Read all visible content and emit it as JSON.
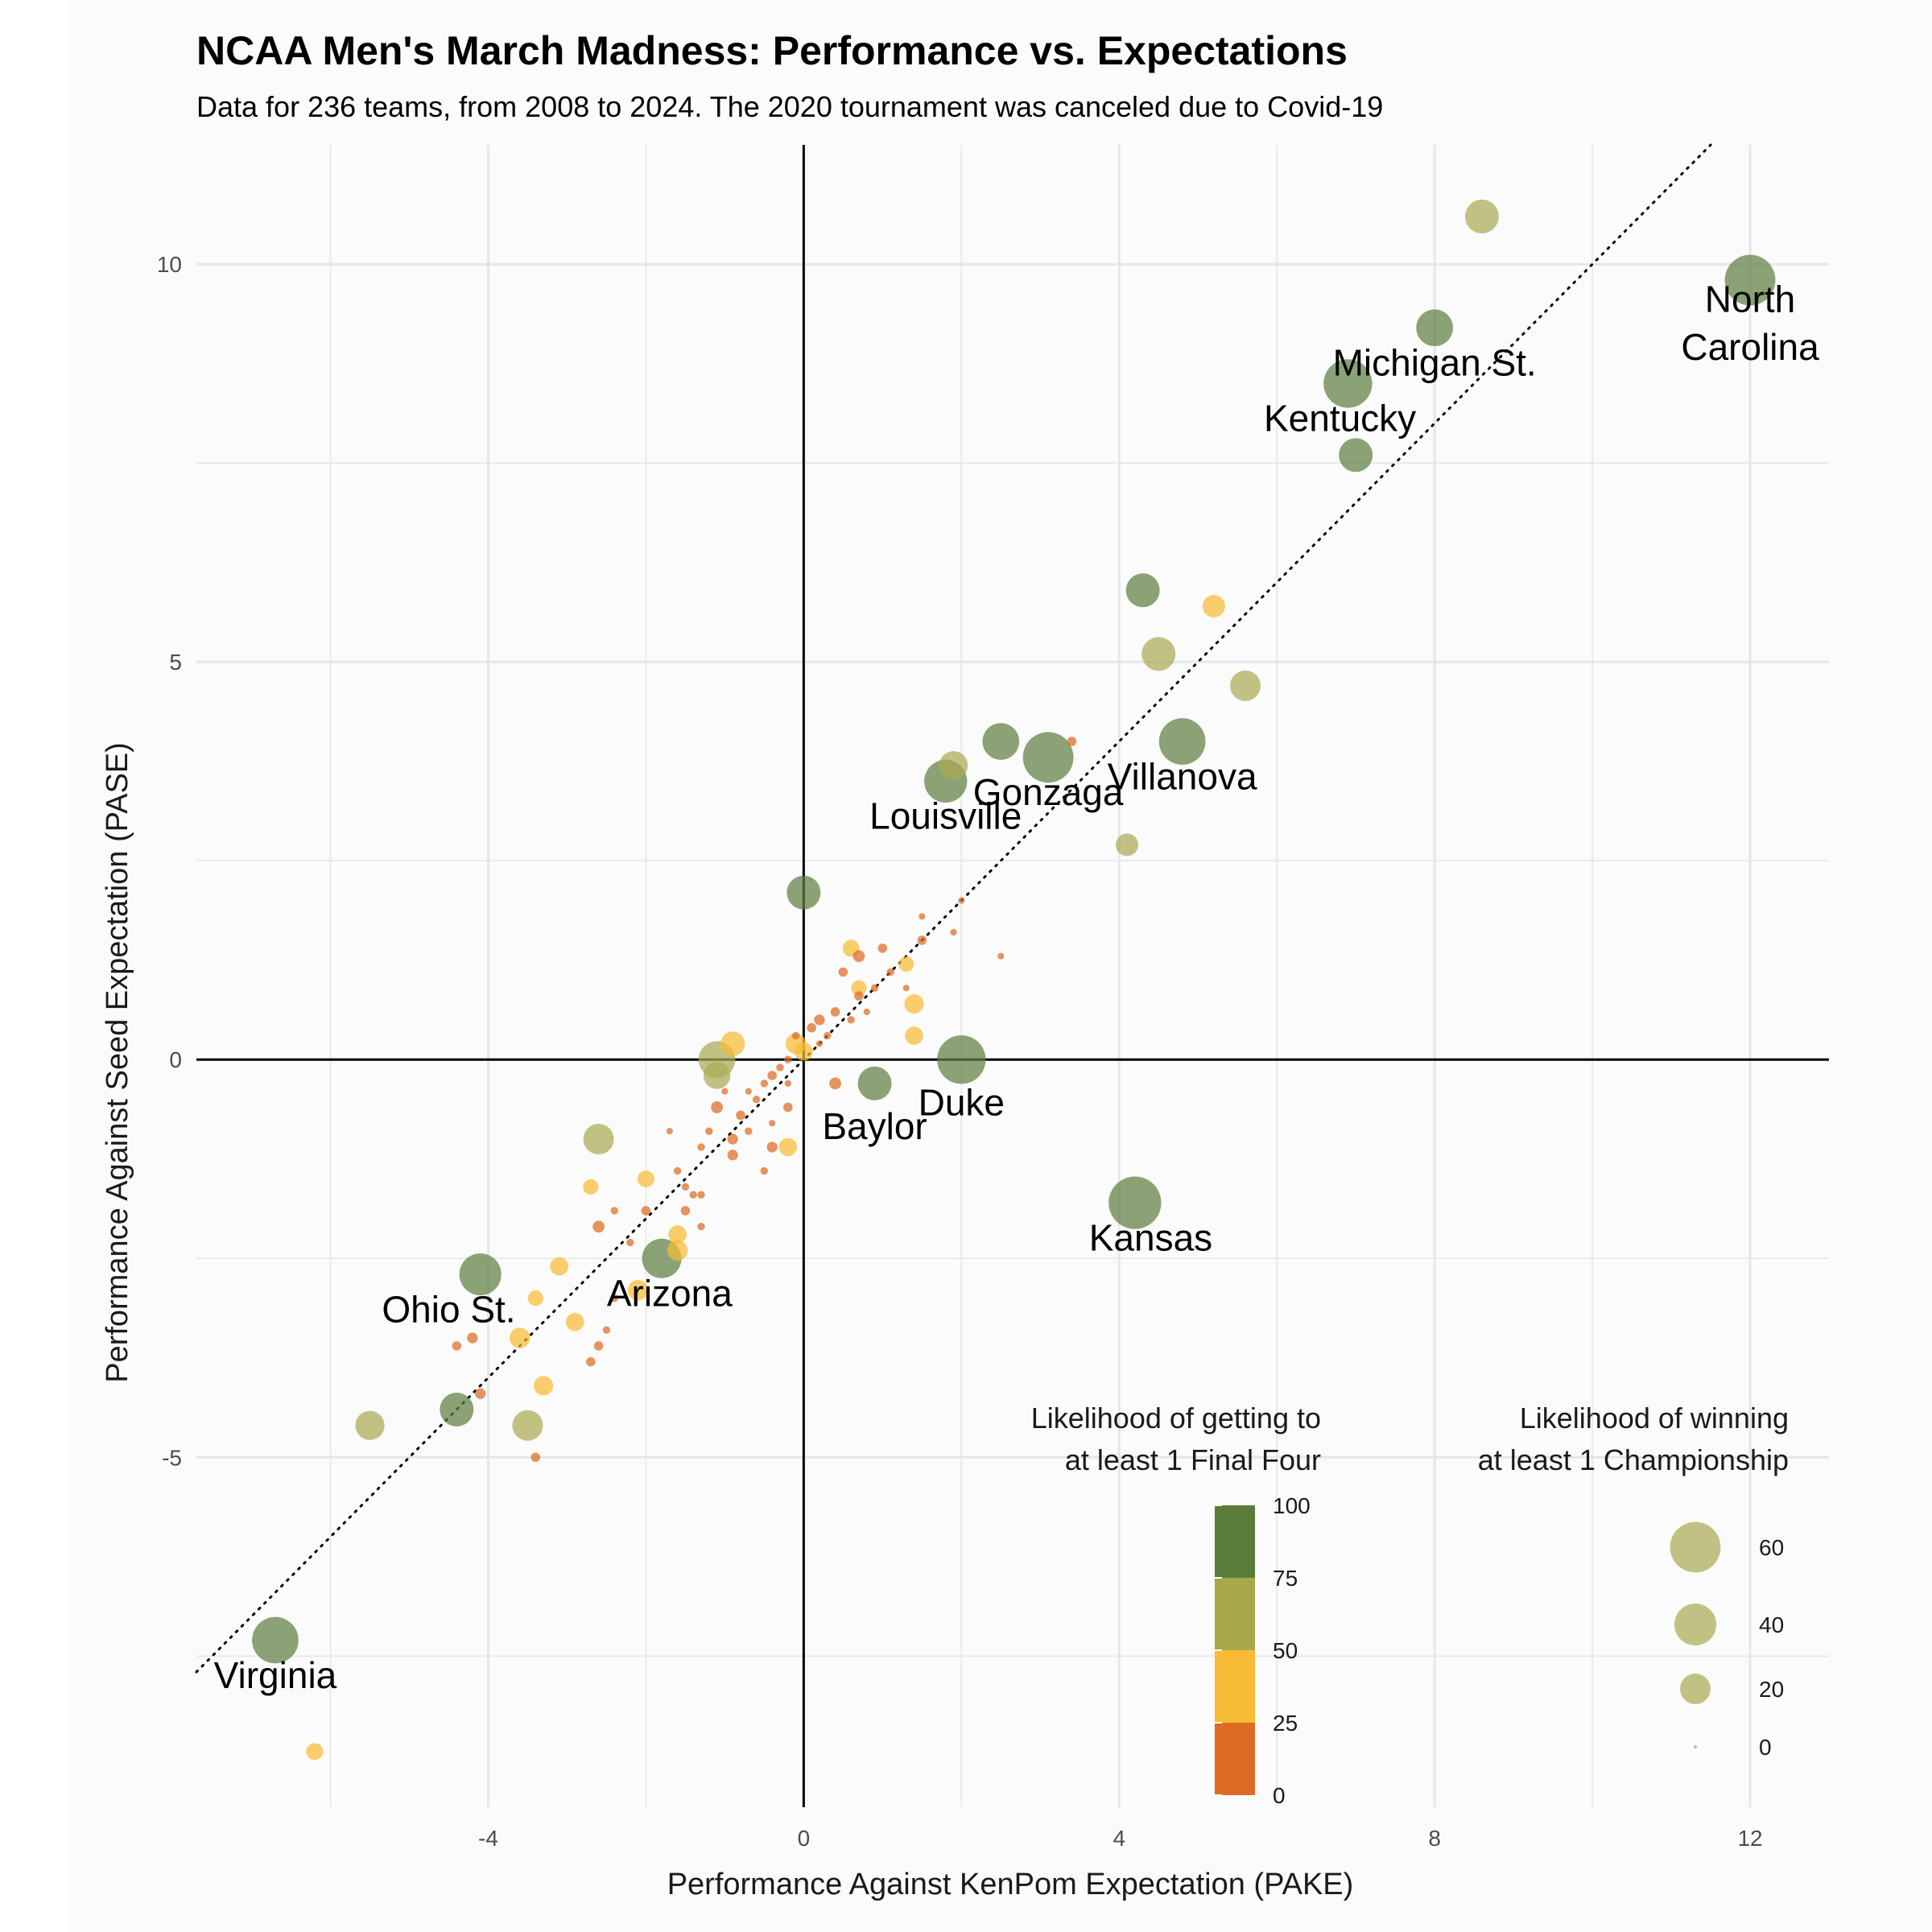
{
  "title": "NCAA Men's March Madness: Performance vs. Expectations",
  "subtitle": "Data for 236 teams, from 2008 to 2024. The 2020 tournament was canceled due to Covid-19",
  "colors": {
    "band_0_25": "#dd6b23",
    "band_25_50": "#f8bb35",
    "band_50_75": "#a8a84a",
    "band_75_100": "#5a7c3a",
    "point_0_25": "#dd6b23",
    "point_25_50": "#f8bb35",
    "point_50_75": "#abab55",
    "point_75_100": "#5e7f41",
    "gridline": "#e6e6e6",
    "panel_bg": "#fbfbfb"
  },
  "chart_data": {
    "type": "scatter",
    "title": "NCAA Men's March Madness: Performance vs. Expectations",
    "subtitle": "Data for 236 teams, from 2008 to 2024. The 2020 tournament was canceled due to Covid-19",
    "xlabel": "Performance Against KenPom Expectation (PAKE)",
    "ylabel": "Performance Against Seed Expectation (PASE)",
    "xlim": [
      -7.7,
      13.0
    ],
    "ylim": [
      -9.4,
      11.5
    ],
    "x_ticks": [
      -4,
      0,
      4,
      8,
      12
    ],
    "x_tick_labels": [
      "-4",
      "0",
      "4",
      "8",
      "12"
    ],
    "y_ticks": [
      -5,
      0,
      5,
      10
    ],
    "y_tick_labels": [
      "-5",
      "0",
      "5",
      "10"
    ],
    "grid": true,
    "reference_lines": {
      "vertical_x": 0,
      "horizontal_y": 0,
      "diagonal": "y = x (dotted)"
    },
    "color_legend": {
      "title_lines": [
        "Likelihood of getting to",
        "at least 1 Final Four"
      ],
      "breaks": [
        "100",
        "75",
        "50",
        "25",
        "0"
      ]
    },
    "size_legend": {
      "title_lines": [
        "Likelihood of winning",
        "at least 1 Championship"
      ],
      "values": [
        60,
        40,
        20,
        0
      ],
      "labels": [
        "60",
        "40",
        "20",
        "0"
      ]
    },
    "points": [
      {
        "x": 12.0,
        "y": 9.8,
        "ff": 90,
        "champ": 60
      },
      {
        "x": 8.6,
        "y": 10.6,
        "ff": 65,
        "champ": 25
      },
      {
        "x": 8.0,
        "y": 9.2,
        "ff": 88,
        "champ": 30
      },
      {
        "x": 6.9,
        "y": 8.5,
        "ff": 90,
        "champ": 55
      },
      {
        "x": 7.0,
        "y": 7.6,
        "ff": 85,
        "champ": 25
      },
      {
        "x": 4.3,
        "y": 5.9,
        "ff": 85,
        "champ": 25
      },
      {
        "x": 5.2,
        "y": 5.7,
        "ff": 40,
        "champ": 10
      },
      {
        "x": 4.5,
        "y": 5.1,
        "ff": 60,
        "champ": 25
      },
      {
        "x": 5.6,
        "y": 4.7,
        "ff": 60,
        "champ": 20
      },
      {
        "x": 2.5,
        "y": 4.0,
        "ff": 85,
        "champ": 30
      },
      {
        "x": 4.8,
        "y": 4.0,
        "ff": 90,
        "champ": 50
      },
      {
        "x": 3.1,
        "y": 3.8,
        "ff": 90,
        "champ": 60
      },
      {
        "x": 1.9,
        "y": 3.7,
        "ff": 65,
        "champ": 17
      },
      {
        "x": 1.8,
        "y": 3.5,
        "ff": 90,
        "champ": 42
      },
      {
        "x": 3.4,
        "y": 4.0,
        "ff": 15,
        "champ": 1
      },
      {
        "x": 4.1,
        "y": 2.7,
        "ff": 60,
        "champ": 10
      },
      {
        "x": 0.0,
        "y": 2.1,
        "ff": 85,
        "champ": 25
      },
      {
        "x": 2.0,
        "y": 0.0,
        "ff": 90,
        "champ": 55
      },
      {
        "x": 0.9,
        "y": -0.3,
        "ff": 85,
        "champ": 25
      },
      {
        "x": 4.2,
        "y": -1.8,
        "ff": 90,
        "champ": 65
      },
      {
        "x": -1.1,
        "y": 0.0,
        "ff": 65,
        "champ": 30
      },
      {
        "x": -1.1,
        "y": -0.2,
        "ff": 60,
        "champ": 15
      },
      {
        "x": -2.6,
        "y": -1.0,
        "ff": 65,
        "champ": 20
      },
      {
        "x": -1.8,
        "y": -2.5,
        "ff": 85,
        "champ": 35
      },
      {
        "x": -4.1,
        "y": -2.7,
        "ff": 85,
        "champ": 40
      },
      {
        "x": -4.4,
        "y": -4.4,
        "ff": 85,
        "champ": 25
      },
      {
        "x": -3.5,
        "y": -4.6,
        "ff": 60,
        "champ": 20
      },
      {
        "x": -5.5,
        "y": -4.6,
        "ff": 60,
        "champ": 18
      },
      {
        "x": -6.7,
        "y": -7.3,
        "ff": 90,
        "champ": 50
      },
      {
        "x": -6.2,
        "y": -8.7,
        "ff": 40,
        "champ": 5
      },
      {
        "x": 0.6,
        "y": 1.4,
        "ff": 40,
        "champ": 5
      },
      {
        "x": 0.7,
        "y": 0.9,
        "ff": 40,
        "champ": 4
      },
      {
        "x": 1.3,
        "y": 1.2,
        "ff": 40,
        "champ": 4
      },
      {
        "x": 1.4,
        "y": 0.7,
        "ff": 40,
        "champ": 7
      },
      {
        "x": 1.4,
        "y": 0.3,
        "ff": 40,
        "champ": 6
      },
      {
        "x": -0.9,
        "y": 0.2,
        "ff": 40,
        "champ": 12
      },
      {
        "x": -0.1,
        "y": 0.2,
        "ff": 40,
        "champ": 8
      },
      {
        "x": 0.0,
        "y": 0.1,
        "ff": 40,
        "champ": 6
      },
      {
        "x": -0.2,
        "y": -1.1,
        "ff": 40,
        "champ": 6
      },
      {
        "x": -2.0,
        "y": -1.5,
        "ff": 40,
        "champ": 5
      },
      {
        "x": -2.7,
        "y": -1.6,
        "ff": 40,
        "champ": 4
      },
      {
        "x": -1.6,
        "y": -2.2,
        "ff": 40,
        "champ": 6
      },
      {
        "x": -1.6,
        "y": -2.4,
        "ff": 40,
        "champ": 8
      },
      {
        "x": -3.1,
        "y": -2.6,
        "ff": 40,
        "champ": 6
      },
      {
        "x": -2.1,
        "y": -2.9,
        "ff": 40,
        "champ": 8
      },
      {
        "x": -3.4,
        "y": -3.0,
        "ff": 40,
        "champ": 4
      },
      {
        "x": -2.9,
        "y": -3.3,
        "ff": 40,
        "champ": 6
      },
      {
        "x": -3.6,
        "y": -3.5,
        "ff": 40,
        "champ": 8
      },
      {
        "x": -3.3,
        "y": -4.1,
        "ff": 40,
        "champ": 7
      },
      {
        "x": 0.7,
        "y": 1.3,
        "ff": 12,
        "champ": 2
      },
      {
        "x": 0.5,
        "y": 1.1,
        "ff": 12,
        "champ": 1
      },
      {
        "x": 1.0,
        "y": 1.4,
        "ff": 12,
        "champ": 1
      },
      {
        "x": 1.5,
        "y": 1.5,
        "ff": 12,
        "champ": 1
      },
      {
        "x": 1.1,
        "y": 1.1,
        "ff": 12,
        "champ": 0.5
      },
      {
        "x": 0.7,
        "y": 0.8,
        "ff": 12,
        "champ": 1
      },
      {
        "x": 0.9,
        "y": 0.9,
        "ff": 12,
        "champ": 0.5
      },
      {
        "x": 0.4,
        "y": 0.6,
        "ff": 12,
        "champ": 1
      },
      {
        "x": 0.6,
        "y": 0.5,
        "ff": 12,
        "champ": 0.5
      },
      {
        "x": 0.2,
        "y": 0.5,
        "ff": 12,
        "champ": 1.5
      },
      {
        "x": 0.1,
        "y": 0.4,
        "ff": 12,
        "champ": 1
      },
      {
        "x": 0.3,
        "y": 0.3,
        "ff": 12,
        "champ": 0.5
      },
      {
        "x": -0.1,
        "y": 0.3,
        "ff": 12,
        "champ": 0.5
      },
      {
        "x": -0.2,
        "y": 0.0,
        "ff": 12,
        "champ": 0.5
      },
      {
        "x": -0.3,
        "y": -0.1,
        "ff": 12,
        "champ": 0.5
      },
      {
        "x": -0.4,
        "y": -0.2,
        "ff": 12,
        "champ": 1
      },
      {
        "x": -0.5,
        "y": -0.3,
        "ff": 12,
        "champ": 0.5
      },
      {
        "x": 0.4,
        "y": -0.3,
        "ff": 12,
        "champ": 2
      },
      {
        "x": -0.2,
        "y": -0.6,
        "ff": 12,
        "champ": 1
      },
      {
        "x": -0.6,
        "y": -0.5,
        "ff": 12,
        "champ": 0.5
      },
      {
        "x": -0.8,
        "y": -0.7,
        "ff": 12,
        "champ": 1
      },
      {
        "x": -0.7,
        "y": -0.9,
        "ff": 12,
        "champ": 0.5
      },
      {
        "x": -1.1,
        "y": -0.6,
        "ff": 12,
        "champ": 2
      },
      {
        "x": -0.9,
        "y": -1.0,
        "ff": 12,
        "champ": 1.5
      },
      {
        "x": -1.2,
        "y": -0.9,
        "ff": 12,
        "champ": 0.5
      },
      {
        "x": -0.9,
        "y": -1.2,
        "ff": 12,
        "champ": 1.5
      },
      {
        "x": -0.4,
        "y": -1.1,
        "ff": 12,
        "champ": 1.5
      },
      {
        "x": -0.5,
        "y": -1.4,
        "ff": 12,
        "champ": 0.5
      },
      {
        "x": -1.3,
        "y": -1.1,
        "ff": 12,
        "champ": 0.5
      },
      {
        "x": -1.6,
        "y": -1.4,
        "ff": 12,
        "champ": 0.5
      },
      {
        "x": -1.5,
        "y": -1.6,
        "ff": 12,
        "champ": 0.5
      },
      {
        "x": -1.4,
        "y": -1.7,
        "ff": 12,
        "champ": 0.5
      },
      {
        "x": -1.3,
        "y": -1.7,
        "ff": 12,
        "champ": 0.5
      },
      {
        "x": -1.5,
        "y": -1.9,
        "ff": 12,
        "champ": 1
      },
      {
        "x": -2.0,
        "y": -1.9,
        "ff": 12,
        "champ": 1
      },
      {
        "x": -2.4,
        "y": -1.9,
        "ff": 12,
        "champ": 0.5
      },
      {
        "x": -2.6,
        "y": -2.1,
        "ff": 12,
        "champ": 2
      },
      {
        "x": -2.2,
        "y": -2.3,
        "ff": 12,
        "champ": 0.5
      },
      {
        "x": -1.3,
        "y": -2.1,
        "ff": 12,
        "champ": 0.5
      },
      {
        "x": -2.4,
        "y": -3.0,
        "ff": 12,
        "champ": 0.5
      },
      {
        "x": -2.5,
        "y": -3.4,
        "ff": 12,
        "champ": 0.5
      },
      {
        "x": -2.6,
        "y": -3.6,
        "ff": 12,
        "champ": 1
      },
      {
        "x": -2.7,
        "y": -3.8,
        "ff": 12,
        "champ": 1
      },
      {
        "x": -4.2,
        "y": -3.5,
        "ff": 12,
        "champ": 1.5
      },
      {
        "x": -4.4,
        "y": -3.6,
        "ff": 12,
        "champ": 1
      },
      {
        "x": -4.1,
        "y": -4.2,
        "ff": 12,
        "champ": 1.5
      },
      {
        "x": -3.4,
        "y": -5.0,
        "ff": 12,
        "champ": 1
      },
      {
        "x": 2.5,
        "y": 1.3,
        "ff": 12,
        "champ": 0.3
      },
      {
        "x": 2.0,
        "y": 2.0,
        "ff": 12,
        "champ": 0.3
      },
      {
        "x": 1.5,
        "y": 1.8,
        "ff": 12,
        "champ": 0.3
      },
      {
        "x": 1.9,
        "y": 1.6,
        "ff": 12,
        "champ": 0.3
      },
      {
        "x": 0.2,
        "y": 0.2,
        "ff": 12,
        "champ": 0.3
      },
      {
        "x": -0.7,
        "y": -0.4,
        "ff": 12,
        "champ": 0.3
      },
      {
        "x": -0.4,
        "y": -0.8,
        "ff": 12,
        "champ": 0.3
      },
      {
        "x": -1.7,
        "y": -0.9,
        "ff": 12,
        "champ": 0.3
      },
      {
        "x": -1.0,
        "y": -0.4,
        "ff": 12,
        "champ": 0.3
      },
      {
        "x": -0.2,
        "y": -0.3,
        "ff": 12,
        "champ": 0.3
      },
      {
        "x": 0.8,
        "y": 0.6,
        "ff": 12,
        "champ": 0.3
      },
      {
        "x": 1.3,
        "y": 0.9,
        "ff": 12,
        "champ": 0.3
      }
    ],
    "labels": [
      {
        "text": "North",
        "x": 12.0,
        "y": 9.4
      },
      {
        "text": "Carolina",
        "x": 12.0,
        "y": 8.8
      },
      {
        "text": "Michigan St.",
        "x": 8.0,
        "y": 8.6
      },
      {
        "text": "Kentucky",
        "x": 6.8,
        "y": 7.9
      },
      {
        "text": "Villanova",
        "x": 4.8,
        "y": 3.4
      },
      {
        "text": "Gonzaga",
        "x": 3.1,
        "y": 3.2
      },
      {
        "text": "Louisville",
        "x": 1.8,
        "y": 2.9
      },
      {
        "text": "Duke",
        "x": 2.0,
        "y": -0.7
      },
      {
        "text": "Baylor",
        "x": 0.9,
        "y": -1.0
      },
      {
        "text": "Kansas",
        "x": 4.4,
        "y": -2.4
      },
      {
        "text": "Arizona",
        "x": -1.7,
        "y": -3.1
      },
      {
        "text": "Ohio St.",
        "x": -4.5,
        "y": -3.3
      },
      {
        "text": "Virginia",
        "x": -6.7,
        "y": -7.9
      }
    ]
  }
}
